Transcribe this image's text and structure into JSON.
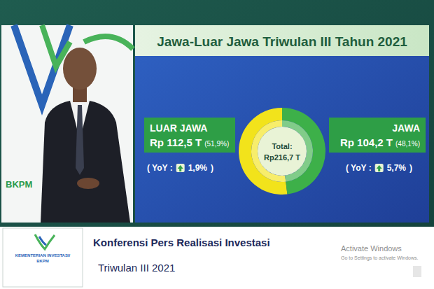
{
  "chart_data": {
    "type": "donut",
    "title": "Jawa-Luar Jawa Triwulan III Tahun 2021",
    "categories": [
      "LUAR JAWA",
      "JAWA"
    ],
    "values": [
      112.5,
      104.2
    ],
    "value_labels": [
      "Rp 112,5 T",
      "Rp 104,2 T"
    ],
    "shares": [
      51.9,
      48.1
    ],
    "share_labels": [
      "(51,9%)",
      "(48,1%)"
    ],
    "yoy": [
      1.9,
      5.7
    ],
    "yoy_labels": [
      "1,9%",
      "5,7%"
    ],
    "yoy_prefix": "( YoY :",
    "yoy_suffix": ")",
    "total": 216.7,
    "total_label": "Total:",
    "total_value_label": "Rp216,7 T",
    "colors": [
      "#f2e31b",
      "#3db049"
    ]
  },
  "backdrop": {
    "text": "BKPM"
  },
  "footer": {
    "logo_lines": [
      "KEMENTERIAN INVESTASI/",
      "BKPM"
    ],
    "title": "Konferensi Pers Realisasi Investasi",
    "subtitle": "Triwulan III 2021"
  },
  "watermark": {
    "title": "Activate Windows",
    "note": "Go to Settings to activate Windows."
  }
}
